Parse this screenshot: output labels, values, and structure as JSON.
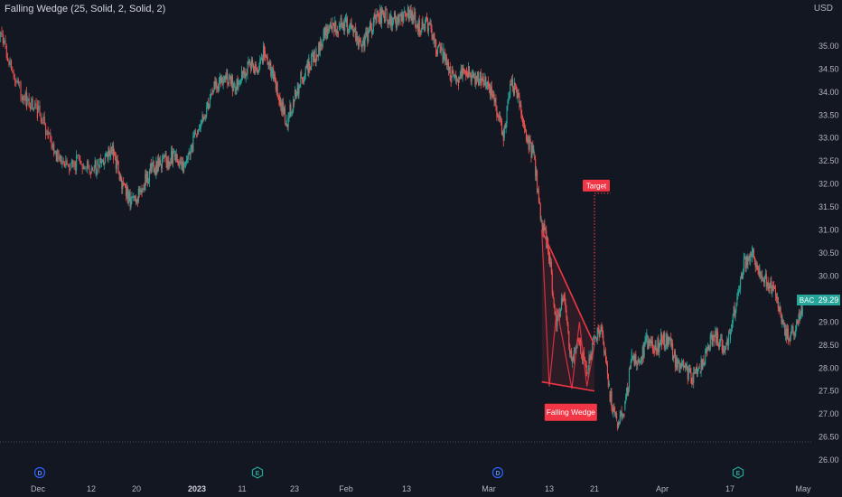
{
  "indicator": {
    "title": "Falling Wedge (25, Solid, 2, Solid, 2)"
  },
  "price_scale": {
    "currency": "USD",
    "last_price_label": "29.29",
    "symbol": "BAC"
  },
  "annotations": {
    "target_label": "Target",
    "pattern_label": "Falling Wedge"
  },
  "event_markers": [
    {
      "kind": "dividend",
      "letter": "D",
      "date": "Dec 5"
    },
    {
      "kind": "earnings",
      "letter": "E",
      "date": "Jan 18"
    },
    {
      "kind": "dividend",
      "letter": "D",
      "date": "Mar 2"
    },
    {
      "kind": "earnings",
      "letter": "E",
      "date": "Apr 18"
    }
  ],
  "colors": {
    "background": "#131722",
    "up": "#26a69a",
    "down": "#ef5350",
    "wedge": "#f23645",
    "text": "#b2b5be",
    "last_price_bg": "#26a69a"
  },
  "chart_data": {
    "type": "candlestick",
    "title": "",
    "xlabel": "",
    "ylabel": "",
    "ylim": [
      25.8,
      35.8
    ],
    "y_ticks": [
      "26.00",
      "26.50",
      "27.00",
      "27.50",
      "28.00",
      "28.50",
      "29.00",
      "29.50",
      "30.00",
      "30.50",
      "31.00",
      "31.50",
      "32.00",
      "32.50",
      "33.00",
      "33.50",
      "34.00",
      "34.50",
      "35.00"
    ],
    "x_tick_labels": [
      "Dec",
      "12",
      "20",
      "2023",
      "11",
      "23",
      "Feb",
      "13",
      "Mar",
      "13",
      "21",
      "Apr",
      "17",
      "May"
    ],
    "close_series": [
      {
        "date": "Nov 28",
        "close": 35.3
      },
      {
        "date": "Nov 29",
        "close": 35.0
      },
      {
        "date": "Nov 30",
        "close": 34.2
      },
      {
        "date": "Dec 1",
        "close": 33.8
      },
      {
        "date": "Dec 2",
        "close": 33.6
      },
      {
        "date": "Dec 5",
        "close": 33.1
      },
      {
        "date": "Dec 6",
        "close": 32.5
      },
      {
        "date": "Dec 7",
        "close": 32.4
      },
      {
        "date": "Dec 8",
        "close": 32.5
      },
      {
        "date": "Dec 9",
        "close": 32.3
      },
      {
        "date": "Dec 12",
        "close": 32.4
      },
      {
        "date": "Dec 13",
        "close": 32.6
      },
      {
        "date": "Dec 14",
        "close": 32.7
      },
      {
        "date": "Dec 15",
        "close": 32.1
      },
      {
        "date": "Dec 16",
        "close": 31.7
      },
      {
        "date": "Dec 19",
        "close": 31.6
      },
      {
        "date": "Dec 20",
        "close": 32.0
      },
      {
        "date": "Dec 21",
        "close": 32.3
      },
      {
        "date": "Dec 22",
        "close": 32.4
      },
      {
        "date": "Dec 23",
        "close": 32.5
      },
      {
        "date": "Dec 27",
        "close": 32.6
      },
      {
        "date": "Dec 28",
        "close": 32.3
      },
      {
        "date": "Dec 29",
        "close": 32.7
      },
      {
        "date": "Dec 30",
        "close": 33.1
      },
      {
        "date": "Jan 3",
        "close": 33.5
      },
      {
        "date": "Jan 4",
        "close": 34.0
      },
      {
        "date": "Jan 5",
        "close": 34.2
      },
      {
        "date": "Jan 6",
        "close": 34.4
      },
      {
        "date": "Jan 9",
        "close": 34.1
      },
      {
        "date": "Jan 10",
        "close": 34.3
      },
      {
        "date": "Jan 11",
        "close": 34.6
      },
      {
        "date": "Jan 12",
        "close": 34.5
      },
      {
        "date": "Jan 13",
        "close": 34.9
      },
      {
        "date": "Jan 17",
        "close": 34.4
      },
      {
        "date": "Jan 18",
        "close": 33.9
      },
      {
        "date": "Jan 19",
        "close": 33.3
      },
      {
        "date": "Jan 20",
        "close": 33.9
      },
      {
        "date": "Jan 23",
        "close": 34.3
      },
      {
        "date": "Jan 24",
        "close": 34.6
      },
      {
        "date": "Jan 25",
        "close": 34.8
      },
      {
        "date": "Jan 26",
        "close": 35.2
      },
      {
        "date": "Jan 27",
        "close": 35.4
      },
      {
        "date": "Jan 30",
        "close": 35.4
      },
      {
        "date": "Jan 31",
        "close": 35.5
      },
      {
        "date": "Feb 1",
        "close": 35.3
      },
      {
        "date": "Feb 2",
        "close": 35.0
      },
      {
        "date": "Feb 3",
        "close": 35.3
      },
      {
        "date": "Feb 6",
        "close": 35.6
      },
      {
        "date": "Feb 7",
        "close": 35.7
      },
      {
        "date": "Feb 8",
        "close": 35.6
      },
      {
        "date": "Feb 9",
        "close": 35.5
      },
      {
        "date": "Feb 10",
        "close": 35.7
      },
      {
        "date": "Feb 13",
        "close": 35.6
      },
      {
        "date": "Feb 14",
        "close": 35.4
      },
      {
        "date": "Feb 15",
        "close": 35.5
      },
      {
        "date": "Feb 16",
        "close": 34.9
      },
      {
        "date": "Feb 17",
        "close": 34.8
      },
      {
        "date": "Feb 21",
        "close": 34.3
      },
      {
        "date": "Feb 22",
        "close": 34.3
      },
      {
        "date": "Feb 23",
        "close": 34.5
      },
      {
        "date": "Feb 24",
        "close": 34.3
      },
      {
        "date": "Feb 27",
        "close": 34.3
      },
      {
        "date": "Feb 28",
        "close": 34.2
      },
      {
        "date": "Mar 1",
        "close": 33.7
      },
      {
        "date": "Mar 2",
        "close": 33.0
      },
      {
        "date": "Mar 3",
        "close": 34.2
      },
      {
        "date": "Mar 6",
        "close": 33.9
      },
      {
        "date": "Mar 7",
        "close": 33.0
      },
      {
        "date": "Mar 8",
        "close": 32.6
      },
      {
        "date": "Mar 9",
        "close": 31.2
      },
      {
        "date": "Mar 10",
        "close": 30.5
      },
      {
        "date": "Mar 13",
        "close": 28.9
      },
      {
        "date": "Mar 14",
        "close": 29.6
      },
      {
        "date": "Mar 15",
        "close": 28.1
      },
      {
        "date": "Mar 16",
        "close": 28.6
      },
      {
        "date": "Mar 17",
        "close": 27.9
      },
      {
        "date": "Mar 20",
        "close": 28.6
      },
      {
        "date": "Mar 21",
        "close": 28.9
      },
      {
        "date": "Mar 22",
        "close": 27.5
      },
      {
        "date": "Mar 23",
        "close": 26.8
      },
      {
        "date": "Mar 24",
        "close": 27.1
      },
      {
        "date": "Mar 27",
        "close": 28.2
      },
      {
        "date": "Mar 28",
        "close": 28.1
      },
      {
        "date": "Mar 29",
        "close": 28.6
      },
      {
        "date": "Mar 30",
        "close": 28.4
      },
      {
        "date": "Mar 31",
        "close": 28.6
      },
      {
        "date": "Apr 3",
        "close": 28.6
      },
      {
        "date": "Apr 4",
        "close": 28.0
      },
      {
        "date": "Apr 5",
        "close": 28.0
      },
      {
        "date": "Apr 6",
        "close": 27.8
      },
      {
        "date": "Apr 10",
        "close": 27.9
      },
      {
        "date": "Apr 11",
        "close": 28.4
      },
      {
        "date": "Apr 12",
        "close": 28.7
      },
      {
        "date": "Apr 13",
        "close": 28.5
      },
      {
        "date": "Apr 14",
        "close": 28.6
      },
      {
        "date": "Apr 17",
        "close": 29.6
      },
      {
        "date": "Apr 18",
        "close": 30.3
      },
      {
        "date": "Apr 19",
        "close": 30.5
      },
      {
        "date": "Apr 20",
        "close": 30.0
      },
      {
        "date": "Apr 21",
        "close": 29.9
      },
      {
        "date": "Apr 24",
        "close": 29.7
      },
      {
        "date": "Apr 25",
        "close": 29.0
      },
      {
        "date": "Apr 26",
        "close": 28.6
      },
      {
        "date": "Apr 27",
        "close": 29.0
      },
      {
        "date": "Apr 28",
        "close": 29.29
      }
    ],
    "wedge": {
      "upper_line": {
        "from": {
          "date": "Mar 10",
          "price": 31.0
        },
        "to": {
          "date": "Mar 21",
          "price": 28.5
        }
      },
      "lower_line": {
        "from": {
          "date": "Mar 10",
          "price": 27.7
        },
        "to": {
          "date": "Mar 21",
          "price": 27.5
        }
      },
      "target_price": 31.8,
      "target_date": "Mar 21"
    }
  }
}
